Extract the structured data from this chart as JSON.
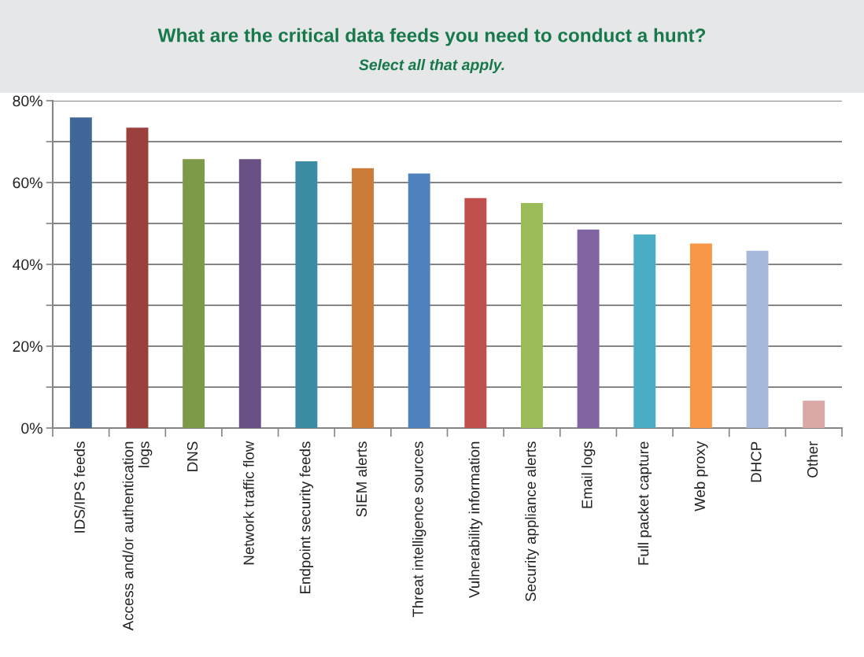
{
  "chart_data": {
    "type": "bar",
    "title": "What are the critical data feeds you need to conduct a hunt?",
    "subtitle": "Select all that apply.",
    "categories": [
      "IDS/IPS feeds",
      "Access and/or authentication logs",
      "DNS",
      "Network traffic flow",
      "Endpoint security feeds",
      "SIEM alerts",
      "Threat intelligence sources",
      "Vulnerability information",
      "Security appliance alerts",
      "Email logs",
      "Full packet capture",
      "Web proxy",
      "DHCP",
      "Other"
    ],
    "values": [
      75.9,
      73.4,
      65.7,
      65.7,
      65.2,
      63.5,
      62.2,
      56.2,
      55.0,
      48.5,
      47.3,
      45.1,
      43.3,
      6.7
    ],
    "colors": [
      "#3f6899",
      "#9c403d",
      "#7d9a48",
      "#695185",
      "#3c8da3",
      "#cc7b38",
      "#4f81bd",
      "#c0504d",
      "#9bbb59",
      "#8064a2",
      "#4bacc6",
      "#f79646",
      "#a7b9da",
      "#dba8a8"
    ],
    "ylim": [
      0,
      80
    ],
    "yticks": [
      {
        "value": 0,
        "label": "0%"
      },
      {
        "value": 10,
        "label": null
      },
      {
        "value": 20,
        "label": "20%"
      },
      {
        "value": 30,
        "label": null
      },
      {
        "value": 40,
        "label": "40%"
      },
      {
        "value": 50,
        "label": null
      },
      {
        "value": 60,
        "label": "60%"
      },
      {
        "value": 70,
        "label": null
      },
      {
        "value": 80,
        "label": "80%"
      }
    ],
    "grid": "y"
  }
}
